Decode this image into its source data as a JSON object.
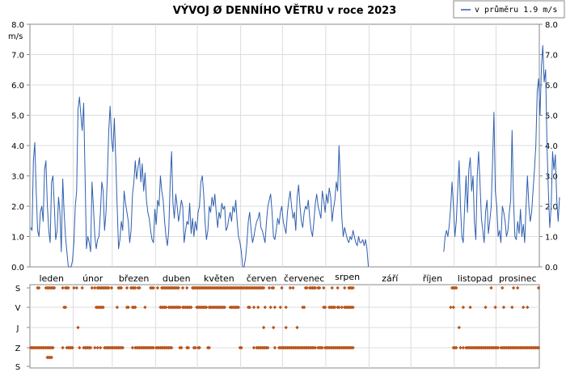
{
  "chart_data": [
    {
      "type": "line",
      "title": "VÝVOJ Ø DENNÍHO VĚTRU v roce 2023",
      "ylabel": "m/s",
      "ylim": [
        0,
        8
      ],
      "yticks": [
        "0.0",
        "1.0",
        "2.0",
        "3.0",
        "4.0",
        "5.0",
        "6.0",
        "7.0",
        "8.0"
      ],
      "month_labels": [
        "leden",
        "únor",
        "březen",
        "duben",
        "květen",
        "červen",
        "červenec",
        "srpen",
        "září",
        "říjen",
        "listopad",
        "prosinec"
      ],
      "series_color": "#2f5fb0",
      "legend": "v průměru 1.9 m/s",
      "grid": true,
      "days": 365,
      "segments": [
        {
          "start_day": 0,
          "values": [
            1.3,
            1.2,
            3.5,
            4.1,
            2.5,
            1.2,
            1.0,
            1.8,
            2.0,
            1.5,
            3.2,
            3.5,
            2.0,
            1.2,
            0.8,
            2.8,
            3.0,
            2.0,
            0.9,
            1.2,
            2.3,
            1.8,
            0.5,
            2.9,
            1.8,
            1.0,
            0.5,
            0.0,
            0.0,
            0.0,
            0.2,
            0.8,
            2.0,
            2.5,
            5.2,
            5.6,
            5.0,
            4.5,
            5.4,
            3.0,
            0.6,
            1.0,
            0.8,
            0.5,
            2.8,
            2.0,
            1.0,
            0.6,
            0.9,
            1.0,
            1.8,
            2.8,
            2.5,
            1.2,
            1.8,
            3.0,
            4.5,
            5.3,
            4.2,
            3.8,
            4.9,
            3.5,
            2.0,
            0.6,
            0.9,
            1.5,
            1.2,
            2.5,
            2.1,
            1.8,
            1.5,
            0.8,
            1.2,
            2.4,
            2.8,
            3.5,
            2.9,
            3.3,
            3.6,
            2.8,
            3.4,
            2.5,
            3.1,
            2.2,
            1.8,
            1.6,
            1.2,
            0.9,
            0.8,
            1.9,
            1.4,
            2.2,
            2.0,
            3.0,
            2.5,
            2.2,
            1.5,
            1.0,
            0.7,
            1.2,
            2.8,
            3.8,
            2.1,
            1.6,
            2.4,
            2.0,
            1.5,
            1.8,
            2.2,
            2.0,
            0.8,
            1.2,
            1.5,
            1.4,
            2.1,
            1.1,
            1.6,
            1.0,
            1.5,
            1.2,
            1.8,
            2.0,
            2.8,
            3.0,
            2.4,
            1.5,
            0.9,
            1.2,
            2.0,
            1.8,
            2.3,
            2.0,
            2.4,
            1.8,
            1.3,
            1.8,
            1.6,
            2.1,
            1.9,
            2.0,
            1.2,
            1.3,
            1.6,
            1.8,
            1.5,
            2.0,
            1.8,
            2.2,
            1.5,
            1.0,
            0.8,
            0.5,
            0.0,
            0.0,
            0.3,
            0.8,
            1.5,
            1.8,
            1.2,
            0.8,
            1.0,
            1.3,
            1.5,
            1.6,
            1.8,
            1.3,
            1.2,
            1.0,
            0.8,
            1.5,
            2.0,
            2.2,
            2.4,
            1.8,
            1.0,
            0.9,
            1.2,
            1.6,
            1.4,
            1.8,
            2.0,
            1.5,
            1.3,
            1.1,
            1.8,
            2.2,
            2.5,
            2.0,
            1.6,
            1.8,
            1.2,
            2.3,
            2.7,
            2.0,
            1.5,
            1.3,
            1.8,
            2.0,
            1.9,
            2.2,
            1.6,
            1.2,
            1.0,
            1.5,
            2.1,
            2.4,
            2.0,
            1.8,
            1.6,
            2.5,
            2.2,
            1.8,
            2.4,
            2.1,
            2.6,
            2.3,
            1.5,
            1.9,
            2.2,
            2.8,
            2.5,
            4.0,
            2.8,
            1.6,
            1.0,
            1.3,
            1.1,
            0.9,
            0.8,
            1.0,
            0.9,
            1.2,
            1.0,
            0.8,
            0.7,
            1.0,
            0.8,
            0.8,
            0.9,
            0.7,
            0.9,
            0.6,
            0.0
          ]
        },
        {
          "start_day": 296,
          "values": [
            0.5,
            1.0,
            1.2,
            1.0,
            1.4,
            2.0,
            2.8,
            2.0,
            1.0,
            1.5,
            2.5,
            3.5,
            2.0,
            1.0,
            0.8,
            2.0,
            3.0,
            1.8,
            3.2,
            3.6,
            2.5,
            3.0,
            1.5,
            0.9,
            3.0,
            3.8,
            2.8,
            1.6,
            1.2,
            0.8,
            1.8,
            2.2,
            1.1,
            1.5,
            2.0,
            3.5,
            5.1,
            2.5,
            2.0,
            1.0,
            1.2,
            0.8,
            2.0,
            1.8,
            1.5,
            1.0,
            1.2,
            1.8,
            2.2,
            4.5,
            2.2,
            1.0,
            0.9,
            1.5,
            1.1,
            1.9,
            1.0,
            1.4,
            0.8,
            2.0,
            3.0,
            2.0,
            1.5,
            1.8,
            2.5,
            3.2,
            4.0,
            5.8,
            6.2,
            5.0,
            6.6,
            7.3,
            6.1,
            6.5,
            4.0,
            2.5,
            1.3,
            2.0,
            3.8,
            3.2,
            3.7,
            2.2,
            1.5,
            2.3
          ]
        }
      ]
    },
    {
      "type": "scatter",
      "ytick_labels": [
        "S",
        "V",
        "J",
        "Z",
        "S"
      ],
      "point_color": "#b8541a",
      "days": 365,
      "directions": [
        {
          "label": "Z",
          "days": [
            0,
            1,
            2,
            3,
            4,
            5,
            6,
            7,
            8,
            9,
            10,
            11,
            12,
            13,
            14,
            15,
            16,
            23,
            26,
            27,
            28,
            29,
            30,
            35,
            38,
            39,
            40,
            41,
            42,
            43,
            46,
            48,
            50,
            53,
            54,
            55,
            56,
            57,
            58,
            59,
            60,
            61,
            62,
            63,
            64,
            65,
            66,
            73,
            75,
            76,
            77,
            78,
            79,
            80,
            81,
            82,
            83,
            84,
            85,
            86,
            87,
            88,
            90,
            91,
            92,
            93,
            94,
            95,
            96,
            97,
            98,
            99,
            100,
            101,
            107,
            108,
            112,
            113,
            117,
            118,
            120,
            121,
            127,
            128,
            150,
            151,
            160,
            162,
            163,
            164,
            165,
            166,
            167,
            168,
            169,
            170,
            175,
            178,
            179,
            180,
            181,
            182,
            183,
            184,
            185,
            186,
            187,
            188,
            189,
            190,
            191,
            192,
            193,
            194,
            195,
            196,
            197,
            198,
            199,
            200,
            201,
            202,
            203,
            204,
            206,
            207,
            208,
            209,
            211,
            212,
            213,
            214,
            215,
            216,
            217,
            218,
            219,
            220,
            221,
            222,
            223,
            224,
            225,
            226,
            227,
            228,
            229,
            230,
            231,
            303,
            304,
            305,
            308,
            310,
            312,
            313,
            314,
            315,
            316,
            317,
            318,
            319,
            320,
            321,
            322,
            323,
            324,
            325,
            326,
            327,
            328,
            329,
            330,
            331,
            332,
            333,
            334,
            335,
            337,
            338,
            339,
            340,
            341,
            342,
            343,
            344,
            345,
            346,
            347,
            348,
            349,
            350,
            351,
            352,
            353,
            354,
            355,
            356,
            357,
            358,
            359,
            360,
            361,
            362,
            363,
            364
          ]
        },
        {
          "label": "J",
          "days": [
            34,
            167,
            174,
            183,
            191,
            307
          ]
        },
        {
          "label": "V",
          "days": [
            24,
            25,
            47,
            48,
            49,
            50,
            51,
            52,
            62,
            69,
            70,
            73,
            74,
            75,
            82,
            93,
            94,
            95,
            96,
            97,
            99,
            100,
            101,
            102,
            103,
            104,
            105,
            106,
            107,
            109,
            110,
            111,
            112,
            113,
            114,
            115,
            119,
            120,
            121,
            122,
            123,
            124,
            125,
            126,
            128,
            129,
            130,
            131,
            132,
            133,
            134,
            135,
            136,
            137,
            138,
            139,
            143,
            144,
            145,
            146,
            147,
            148,
            149,
            156,
            157,
            160,
            163,
            168,
            172,
            175,
            179,
            183,
            195,
            196,
            210,
            211,
            214,
            215,
            216,
            217,
            218,
            220,
            221,
            223,
            225,
            226,
            227,
            228,
            229,
            230,
            231,
            301,
            303,
            310,
            315,
            326,
            333,
            339,
            345,
            353,
            356
          ]
        },
        {
          "label": "S",
          "days": [
            5,
            6,
            11,
            12,
            13,
            14,
            15,
            16,
            17,
            23,
            25,
            26,
            27,
            31,
            33,
            37,
            44,
            46,
            48,
            49,
            50,
            51,
            52,
            53,
            54,
            55,
            56,
            58,
            63,
            64,
            65,
            69,
            72,
            73,
            74,
            75,
            77,
            78,
            86,
            87,
            88,
            91,
            94,
            95,
            96,
            97,
            98,
            99,
            100,
            101,
            102,
            103,
            104,
            105,
            106,
            109,
            112,
            116,
            117,
            118,
            119,
            120,
            121,
            122,
            123,
            124,
            125,
            126,
            127,
            128,
            129,
            130,
            131,
            132,
            133,
            134,
            135,
            136,
            137,
            138,
            139,
            140,
            141,
            142,
            143,
            144,
            145,
            146,
            147,
            148,
            149,
            150,
            151,
            152,
            153,
            154,
            155,
            156,
            157,
            158,
            159,
            160,
            161,
            162,
            163,
            164,
            165,
            166,
            167,
            171,
            173,
            174,
            180,
            186,
            188,
            197,
            198,
            200,
            201,
            202,
            203,
            204,
            206,
            207,
            210,
            216,
            220,
            225,
            228,
            229,
            230,
            231,
            302,
            303,
            304,
            305,
            330,
            338,
            346,
            349,
            364
          ]
        },
        {
          "label": "S_low",
          "days": [
            12,
            13,
            14,
            15
          ]
        }
      ]
    }
  ]
}
